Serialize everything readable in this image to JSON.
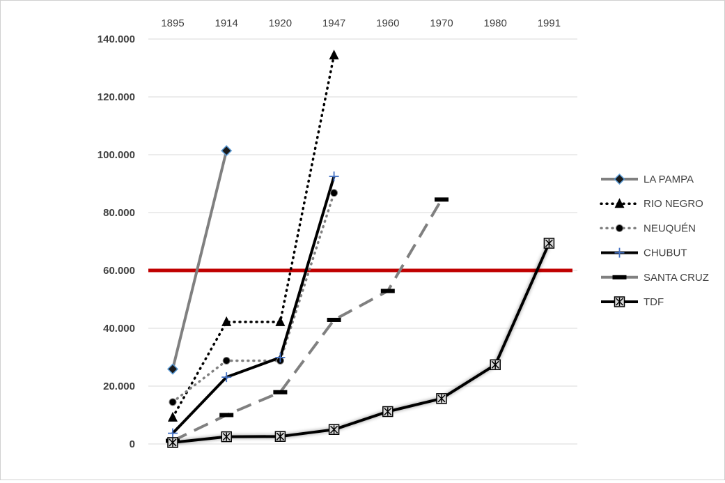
{
  "chart_data": {
    "type": "line",
    "title": "",
    "xlabel": "",
    "ylabel": "",
    "categories": [
      "1895",
      "1914",
      "1920",
      "1947",
      "1960",
      "1970",
      "1980",
      "1991"
    ],
    "ylim": [
      0,
      140000
    ],
    "yticks": [
      {
        "value": 0,
        "label": "0"
      },
      {
        "value": 20000,
        "label": "20.000"
      },
      {
        "value": 40000,
        "label": "40.000"
      },
      {
        "value": 60000,
        "label": "60.000"
      },
      {
        "value": 80000,
        "label": "80.000"
      },
      {
        "value": 100000,
        "label": "100.000"
      },
      {
        "value": 120000,
        "label": "120.000"
      },
      {
        "value": 140000,
        "label": "140.000"
      }
    ],
    "x_axis_position": "top",
    "grid": "horizontal",
    "legend_position": "right",
    "reference_line": {
      "value": 60000,
      "color": "#c00000"
    },
    "series": [
      {
        "name": "LA PAMPA",
        "color": "#808080",
        "dash": "solid",
        "marker": "diamond",
        "values": [
          25900,
          101400,
          null,
          null,
          null,
          null,
          null,
          null
        ]
      },
      {
        "name": "RIO NEGRO",
        "color": "#000000",
        "dash": "dotted",
        "marker": "triangle",
        "values": [
          9200,
          42200,
          42200,
          134400,
          null,
          null,
          null,
          null
        ]
      },
      {
        "name": "NEUQUÉN",
        "color": "#808080",
        "dash": "dotted",
        "marker": "circle",
        "values": [
          14500,
          28800,
          28800,
          86800,
          null,
          null,
          null,
          null
        ]
      },
      {
        "name": "CHUBUT",
        "color": "#000000",
        "dash": "solid",
        "marker": "plus",
        "values": [
          3700,
          23100,
          29900,
          92500,
          null,
          null,
          null,
          null
        ]
      },
      {
        "name": "SANTA CRUZ",
        "color": "#808080",
        "dash": "dashed",
        "marker": "dash",
        "values": [
          1100,
          10000,
          17900,
          42900,
          52900,
          84500,
          null,
          null
        ]
      },
      {
        "name": "TDF",
        "color": "#000000",
        "dash": "solid",
        "marker": "boxed-star",
        "values": [
          500,
          2500,
          2600,
          5000,
          11200,
          15700,
          27400,
          69400
        ]
      }
    ]
  }
}
